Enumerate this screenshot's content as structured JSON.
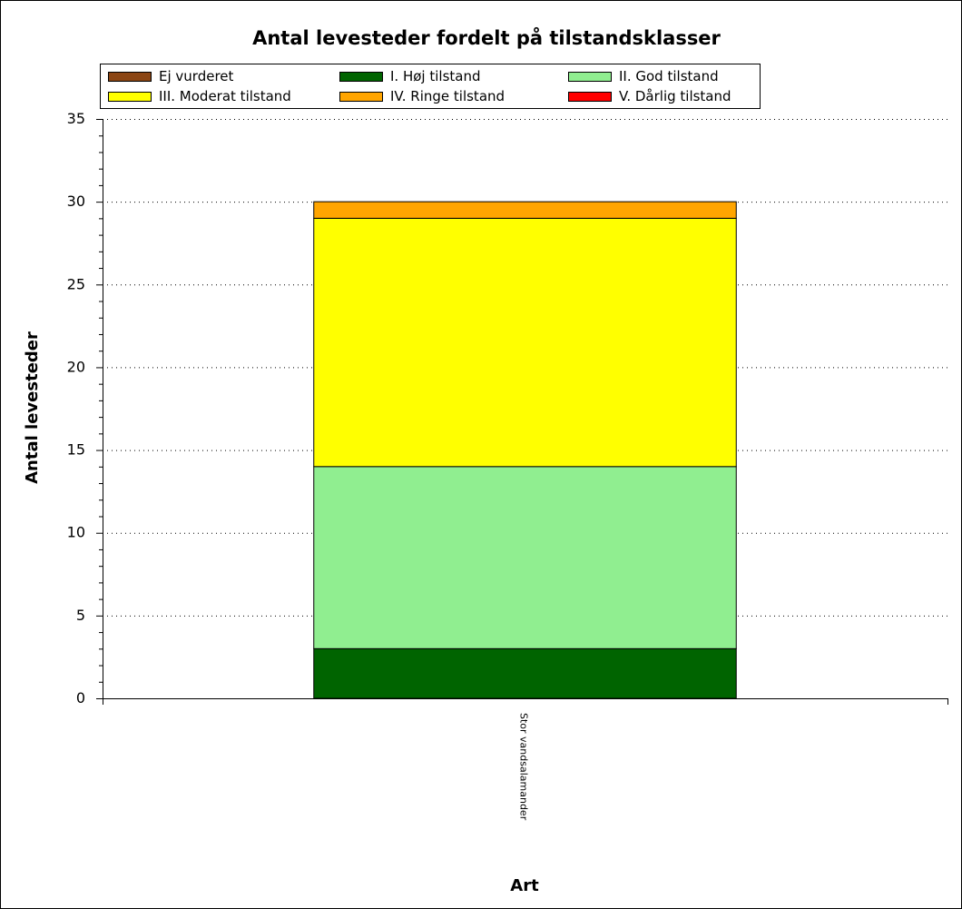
{
  "chart_data": {
    "type": "bar",
    "stacked": true,
    "title": "Antal levesteder fordelt på tilstandsklasser",
    "xlabel": "Art",
    "ylabel": "Antal levesteder",
    "categories": [
      "Stor vandsalamander"
    ],
    "ylim": [
      0,
      35
    ],
    "yticks": [
      "0",
      "5",
      "10",
      "15",
      "20",
      "25",
      "30",
      "35"
    ],
    "grid": "horizontal dotted",
    "legend_position": "top",
    "series": [
      {
        "name": "Ej vurderet",
        "color": "#8b4513",
        "values": [
          0
        ]
      },
      {
        "name": "I. Høj tilstand",
        "color": "#006400",
        "values": [
          3
        ]
      },
      {
        "name": "II. God tilstand",
        "color": "#90ee90",
        "values": [
          11
        ]
      },
      {
        "name": "III. Moderat tilstand",
        "color": "#ffff00",
        "values": [
          15
        ]
      },
      {
        "name": "IV. Ringe tilstand",
        "color": "#ffa500",
        "values": [
          1
        ]
      },
      {
        "name": "V. Dårlig tilstand",
        "color": "#ff0000",
        "values": [
          0
        ]
      }
    ]
  }
}
